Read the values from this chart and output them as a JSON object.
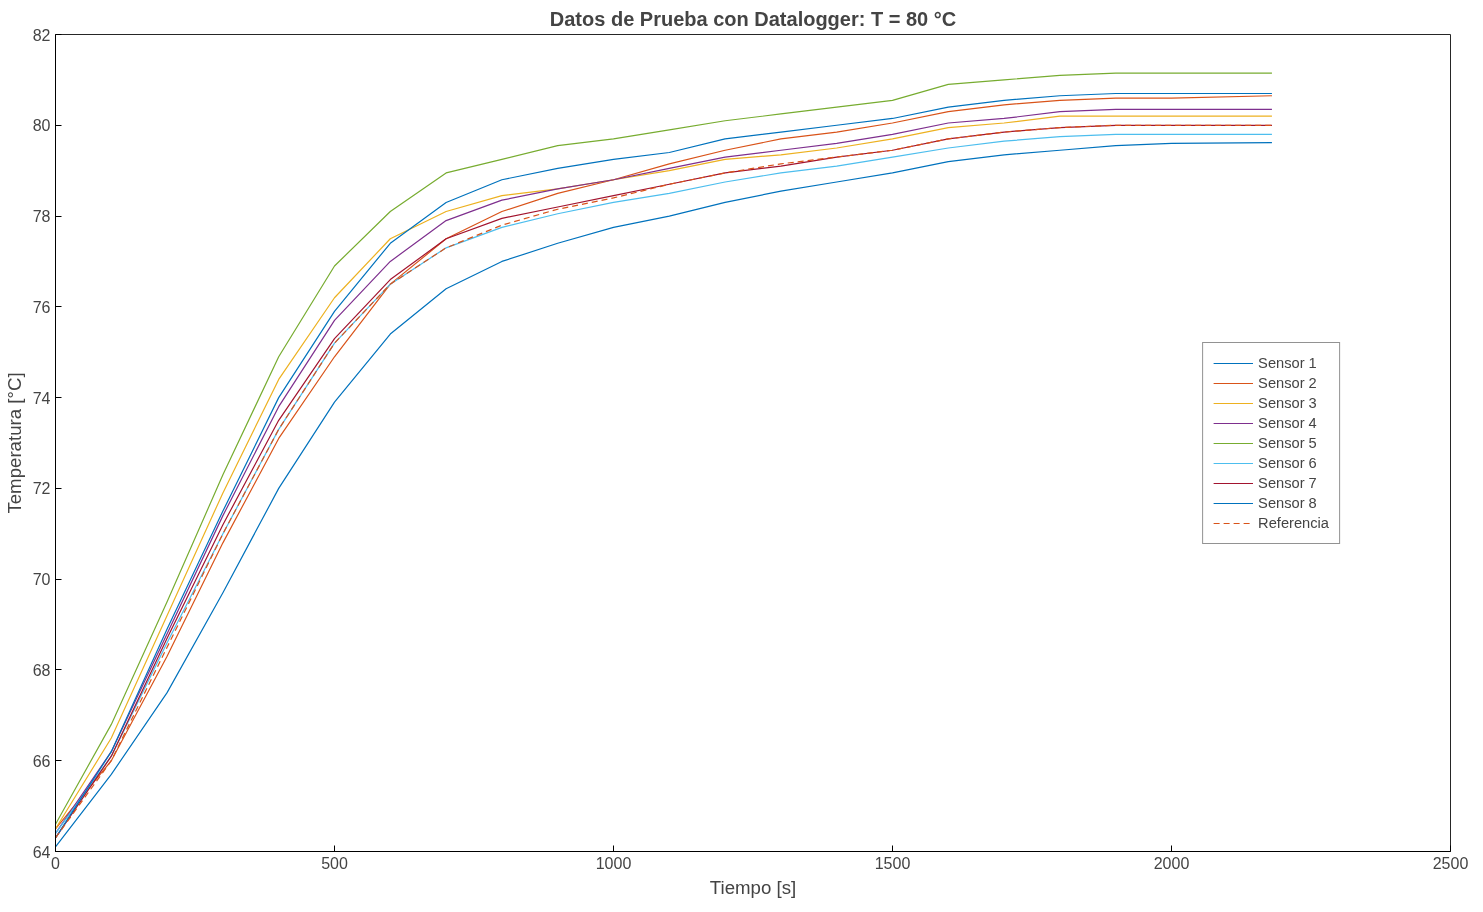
{
  "chart_data": {
    "type": "line",
    "title": "Datos de Prueba con Datalogger: T = 80 °C",
    "xlabel": "Tiempo [s]",
    "ylabel": "Temperatura [°C]",
    "x": [
      0,
      100,
      200,
      300,
      400,
      500,
      600,
      700,
      800,
      900,
      1000,
      1100,
      1200,
      1300,
      1400,
      1500,
      1600,
      1700,
      1800,
      1900,
      2000,
      2180
    ],
    "series": [
      {
        "name": "Sensor 1",
        "color": "#0072bd",
        "values": [
          64.1,
          65.7,
          67.5,
          69.7,
          72.0,
          73.9,
          75.4,
          76.4,
          77.0,
          77.4,
          77.75,
          78.0,
          78.3,
          78.55,
          78.75,
          78.95,
          79.2,
          79.35,
          79.45,
          79.55,
          79.6,
          79.62
        ]
      },
      {
        "name": "Sensor 2",
        "color": "#d95319",
        "values": [
          64.5,
          66.0,
          68.3,
          70.8,
          73.1,
          74.9,
          76.5,
          77.5,
          78.1,
          78.5,
          78.8,
          79.15,
          79.45,
          79.7,
          79.85,
          80.05,
          80.3,
          80.45,
          80.55,
          80.6,
          80.6,
          80.65
        ]
      },
      {
        "name": "Sensor 3",
        "color": "#edb120",
        "values": [
          64.5,
          66.5,
          69.2,
          71.9,
          74.4,
          76.2,
          77.5,
          78.1,
          78.45,
          78.6,
          78.8,
          79.0,
          79.25,
          79.35,
          79.5,
          79.7,
          79.95,
          80.05,
          80.2,
          80.2,
          80.2,
          80.2
        ]
      },
      {
        "name": "Sensor 4",
        "color": "#7e2f8e",
        "values": [
          64.4,
          66.2,
          68.8,
          71.4,
          73.8,
          75.7,
          77.0,
          77.9,
          78.35,
          78.6,
          78.8,
          79.05,
          79.3,
          79.45,
          79.6,
          79.8,
          80.05,
          80.15,
          80.3,
          80.35,
          80.35,
          80.35
        ]
      },
      {
        "name": "Sensor 5",
        "color": "#77ac30",
        "values": [
          64.6,
          66.8,
          69.5,
          72.3,
          74.9,
          76.9,
          78.1,
          78.95,
          79.25,
          79.55,
          79.7,
          79.9,
          80.1,
          80.25,
          80.4,
          80.55,
          80.9,
          81.0,
          81.1,
          81.15,
          81.15,
          81.15
        ]
      },
      {
        "name": "Sensor 6",
        "color": "#4dbeee",
        "values": [
          64.4,
          66.1,
          68.6,
          71.0,
          73.3,
          75.2,
          76.5,
          77.3,
          77.75,
          78.05,
          78.3,
          78.5,
          78.75,
          78.95,
          79.1,
          79.3,
          79.5,
          79.65,
          79.75,
          79.8,
          79.8,
          79.8
        ]
      },
      {
        "name": "Sensor 7",
        "color": "#a2142f",
        "values": [
          64.3,
          66.1,
          68.7,
          71.2,
          73.5,
          75.3,
          76.6,
          77.5,
          77.95,
          78.2,
          78.45,
          78.7,
          78.95,
          79.1,
          79.3,
          79.45,
          79.7,
          79.85,
          79.95,
          80.0,
          80.0,
          80.0
        ]
      },
      {
        "name": "Sensor 8",
        "color": "#0072bd",
        "values": [
          64.3,
          66.2,
          68.9,
          71.5,
          74.0,
          75.9,
          77.4,
          78.3,
          78.8,
          79.05,
          79.25,
          79.4,
          79.7,
          79.85,
          80.0,
          80.15,
          80.4,
          80.55,
          80.65,
          80.7,
          80.7,
          80.7
        ]
      },
      {
        "name": "Referencia",
        "color": "#d95319",
        "line_style": "dashed",
        "values": [
          64.3,
          66.0,
          68.5,
          71.0,
          73.3,
          75.2,
          76.5,
          77.3,
          77.8,
          78.15,
          78.4,
          78.7,
          78.95,
          79.15,
          79.3,
          79.45,
          79.7,
          79.85,
          79.95,
          80.0,
          80.0,
          80.0
        ]
      }
    ],
    "xlim": [
      0,
      2500
    ],
    "xticks": [
      0,
      500,
      1000,
      1500,
      2000,
      2500
    ],
    "ylim": [
      64,
      82
    ],
    "yticks": [
      64,
      66,
      68,
      70,
      72,
      74,
      76,
      78,
      80,
      82
    ],
    "legend": "right",
    "grid": false,
    "line_style": "solid"
  }
}
